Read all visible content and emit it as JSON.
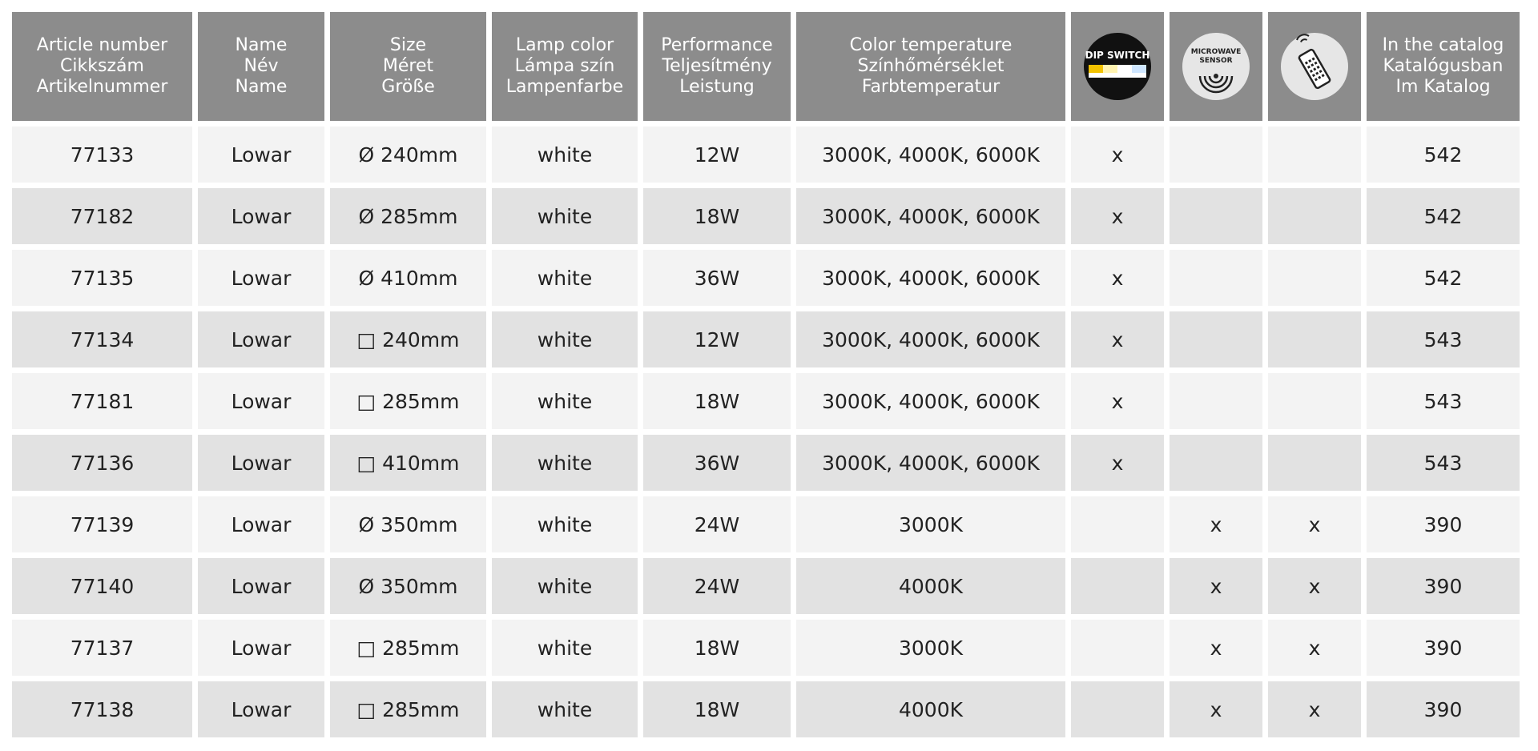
{
  "table": {
    "header": [
      [
        "Article number",
        "Cikkszám",
        "Artikelnummer"
      ],
      [
        "Name",
        "Név",
        "Name"
      ],
      [
        "Size",
        "Méret",
        "Größe"
      ],
      [
        "Lamp color",
        "Lámpa szín",
        "Lampenfarbe"
      ],
      [
        "Performance",
        "Teljesítmény",
        "Leistung"
      ],
      [
        "Color temperature",
        "Színhőmérséklet",
        "Farbtemperatur"
      ],
      [
        "DIP SWITCH"
      ],
      [
        "MICROWAVE",
        "SENSOR"
      ],
      [],
      [
        "In the catalog",
        "Katalógusban",
        "Im Katalog"
      ]
    ],
    "rows": [
      [
        "77133",
        "Lowar",
        "Ø 240mm",
        "white",
        "12W",
        "3000K, 4000K, 6000K",
        "x",
        null,
        null,
        "542"
      ],
      [
        "77182",
        "Lowar",
        "Ø 285mm",
        "white",
        "18W",
        "3000K, 4000K, 6000K",
        "x",
        null,
        null,
        "542"
      ],
      [
        "77135",
        "Lowar",
        "Ø 410mm",
        "white",
        "36W",
        "3000K, 4000K, 6000K",
        "x",
        null,
        null,
        "542"
      ],
      [
        "77134",
        "Lowar",
        "□ 240mm",
        "white",
        "12W",
        "3000K, 4000K, 6000K",
        "x",
        null,
        null,
        "543"
      ],
      [
        "77181",
        "Lowar",
        "□ 285mm",
        "white",
        "18W",
        "3000K, 4000K, 6000K",
        "x",
        null,
        null,
        "543"
      ],
      [
        "77136",
        "Lowar",
        "□ 410mm",
        "white",
        "36W",
        "3000K, 4000K, 6000K",
        "x",
        null,
        null,
        "543"
      ],
      [
        "77139",
        "Lowar",
        "Ø 350mm",
        "white",
        "24W",
        "3000K",
        null,
        "x",
        "x",
        "390"
      ],
      [
        "77140",
        "Lowar",
        "Ø 350mm",
        "white",
        "24W",
        "4000K",
        null,
        "x",
        "x",
        "390"
      ],
      [
        "77137",
        "Lowar",
        "□ 285mm",
        "white",
        "18W",
        "3000K",
        null,
        "x",
        "x",
        "390"
      ],
      [
        "77138",
        "Lowar",
        "□ 285mm",
        "white",
        "18W",
        "4000K",
        null,
        "x",
        "x",
        "390"
      ]
    ]
  }
}
